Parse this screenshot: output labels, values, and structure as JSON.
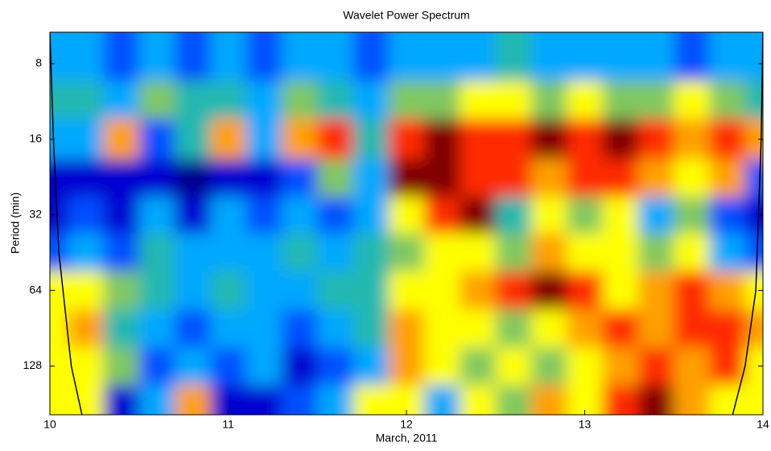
{
  "chart_data": {
    "type": "heatmap",
    "title": "Wavelet Power Spectrum",
    "x_label": "March, 2011",
    "y_label": "Period (min)",
    "x": [
      10.0,
      10.2,
      10.4,
      10.6,
      10.8,
      11.0,
      11.2,
      11.4,
      11.6,
      11.8,
      12.0,
      12.2,
      12.4,
      12.6,
      12.8,
      13.0,
      13.2,
      13.4,
      13.6,
      13.8,
      14.0
    ],
    "y": [
      8,
      11,
      16,
      23,
      32,
      45,
      64,
      91,
      128,
      181
    ],
    "z": [
      [
        3,
        3,
        2,
        3,
        2,
        3,
        2,
        3,
        3,
        2,
        3,
        3,
        3,
        4,
        3,
        3,
        3,
        3,
        2,
        3,
        3
      ],
      [
        4,
        4,
        3,
        5,
        4,
        4,
        3,
        5,
        4,
        3,
        5,
        5,
        6,
        6,
        5,
        6,
        5,
        5,
        6,
        5,
        4
      ],
      [
        3,
        3,
        7,
        2,
        4,
        7,
        3,
        7,
        8,
        4,
        8,
        9,
        8,
        8,
        9,
        8,
        9,
        8,
        7,
        8,
        7
      ],
      [
        1,
        1,
        1,
        1,
        0,
        1,
        1,
        2,
        5,
        3,
        9,
        9,
        8,
        8,
        7,
        8,
        8,
        7,
        6,
        7,
        2
      ],
      [
        1,
        2,
        1,
        3,
        1,
        3,
        2,
        3,
        2,
        3,
        6,
        8,
        9,
        4,
        6,
        5,
        6,
        3,
        5,
        2,
        1
      ],
      [
        2,
        3,
        2,
        4,
        3,
        3,
        3,
        4,
        3,
        4,
        5,
        6,
        6,
        5,
        7,
        6,
        6,
        5,
        6,
        3,
        2
      ],
      [
        6,
        6,
        5,
        4,
        3,
        4,
        3,
        3,
        4,
        4,
        6,
        6,
        7,
        8,
        9,
        8,
        6,
        7,
        8,
        7,
        6
      ],
      [
        6,
        7,
        4,
        3,
        2,
        3,
        3,
        2,
        3,
        4,
        7,
        6,
        6,
        5,
        6,
        7,
        8,
        7,
        8,
        8,
        7
      ],
      [
        6,
        6,
        5,
        2,
        3,
        2,
        3,
        1,
        2,
        3,
        7,
        6,
        5,
        6,
        5,
        6,
        7,
        8,
        7,
        8,
        6
      ],
      [
        6,
        6,
        1,
        3,
        7,
        1,
        1,
        2,
        3,
        6,
        6,
        3,
        6,
        5,
        7,
        6,
        8,
        9,
        7,
        6,
        6
      ]
    ],
    "colors": [
      "#00008f",
      "#0000d0",
      "#0050ff",
      "#00a8ff",
      "#20b8b0",
      "#80c860",
      "#ffff00",
      "#ffa000",
      "#ff2a00",
      "#800000"
    ],
    "series": [
      {
        "x": [
          10.0,
          10.02,
          10.05,
          10.12,
          10.18
        ],
        "values": [
          6,
          16,
          45,
          128,
          200
        ],
        "color": "#000000"
      },
      {
        "x": [
          14.0,
          13.99,
          13.96,
          13.9,
          13.83
        ],
        "values": [
          6,
          16,
          64,
          128,
          200
        ],
        "color": "#000000"
      }
    ],
    "xlim": [
      10,
      14
    ],
    "xticks": [
      10,
      11,
      12,
      13,
      14
    ],
    "ylim": [
      6,
      200
    ],
    "yticks": [
      8,
      16,
      32,
      64,
      128
    ],
    "y_scale": "log",
    "y_reversed": true
  }
}
